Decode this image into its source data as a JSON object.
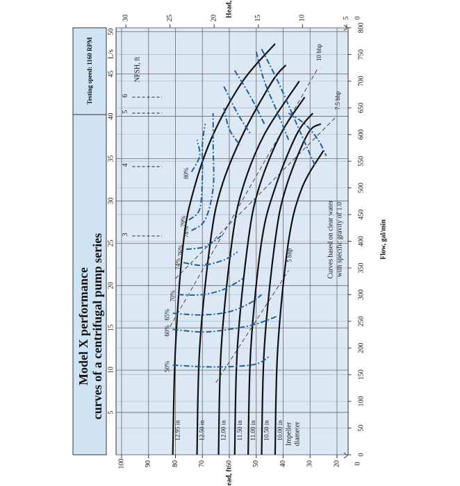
{
  "chart_data": {
    "type": "line",
    "title": "Model X performance",
    "subtitle": "curves of a centrifugal pump series",
    "speed_note": "Testing speed: 1160 RPM",
    "xlabel": "Flow, gal/min",
    "x2label": "L/s",
    "ylabel": "Head, ft",
    "y2label": "Head, m",
    "xlim": [
      0,
      800
    ],
    "xticks": [
      0,
      50,
      100,
      150,
      200,
      250,
      300,
      350,
      400,
      450,
      500,
      550,
      600,
      650,
      700,
      750,
      800
    ],
    "x2lim": [
      0,
      50.47
    ],
    "x2ticks": [
      5,
      10,
      15,
      20,
      25,
      30,
      35,
      40,
      45,
      50
    ],
    "ylim": [
      16,
      102
    ],
    "yticks": [
      20,
      30,
      40,
      50,
      60,
      70,
      80,
      90,
      100
    ],
    "y2lim": [
      4.877,
      31.09
    ],
    "y2ticks": [
      5,
      10,
      15,
      20,
      25,
      30
    ],
    "ybreak_tick": 0,
    "y2break_tick": 0,
    "grid": true,
    "impeller_label": [
      "Impeller",
      "diameter"
    ],
    "annotation": [
      "Curves based on clear water",
      "with specific gravity of 1.0"
    ],
    "npsh": {
      "label": "NPSH, ft",
      "marks": [
        {
          "npsh": 3,
          "x": 410
        },
        {
          "npsh": 4,
          "x": 540
        },
        {
          "npsh": 5,
          "x": 640
        },
        {
          "npsh": 6,
          "x": 670
        }
      ]
    },
    "series": [
      {
        "name": "12.95 in",
        "kind": "impeller",
        "color": "#111111",
        "x": [
          0,
          200,
          400,
          500,
          600,
          700,
          770
        ],
        "values": [
          81,
          80,
          77,
          73,
          66,
          55,
          43
        ]
      },
      {
        "name": "12.50 in",
        "kind": "impeller",
        "color": "#111111",
        "x": [
          0,
          200,
          400,
          500,
          600,
          700,
          730
        ],
        "values": [
          72,
          71,
          67,
          63,
          55,
          44,
          39
        ]
      },
      {
        "name": "12.00 in",
        "kind": "impeller",
        "color": "#111111",
        "x": [
          0,
          200,
          400,
          500,
          600,
          700
        ],
        "values": [
          64,
          63,
          59,
          55,
          47,
          34
        ]
      },
      {
        "name": "11.50 in",
        "kind": "impeller",
        "color": "#111111",
        "x": [
          0,
          200,
          400,
          500,
          600,
          670
        ],
        "values": [
          58,
          57,
          53,
          49,
          41,
          32
        ]
      },
      {
        "name": "11.00 in",
        "kind": "impeller",
        "color": "#111111",
        "x": [
          0,
          200,
          400,
          500,
          600,
          640
        ],
        "values": [
          53,
          52,
          48,
          43,
          35,
          29
        ]
      },
      {
        "name": "10.50 in",
        "kind": "impeller",
        "color": "#111111",
        "x": [
          0,
          200,
          400,
          500,
          600,
          620
        ],
        "values": [
          48,
          47,
          43,
          39,
          31,
          26
        ]
      },
      {
        "name": "10.00 in",
        "kind": "impeller",
        "color": "#111111",
        "x": [
          0,
          200,
          400,
          500,
          570
        ],
        "values": [
          43,
          42,
          38,
          33,
          25
        ]
      },
      {
        "name": "50%",
        "kind": "efficiency",
        "color": "#1f5f9f",
        "x": [
          168,
          165,
          165,
          170,
          185,
          null,
          640,
          620,
          590,
          560
        ],
        "values": [
          81,
          70,
          60,
          50,
          45,
          null,
          38,
          32,
          27,
          24
        ]
      },
      {
        "name": "60%",
        "kind": "efficiency",
        "color": "#1f5f9f",
        "x": [
          235,
          230,
          235,
          245,
          260,
          null,
          760,
          700,
          620,
          540
        ],
        "values": [
          81,
          70,
          60,
          50,
          42,
          null,
          48,
          42,
          35,
          28
        ]
      },
      {
        "name": "65%",
        "kind": "efficiency",
        "color": "#1f5f9f",
        "x": [
          265,
          262,
          268,
          285,
          300,
          null,
          755,
          700,
          640,
          590
        ],
        "values": [
          81,
          70,
          60,
          52,
          48,
          null,
          50,
          47,
          42,
          38
        ]
      },
      {
        "name": "70%",
        "kind": "efficiency",
        "color": "#1f5f9f",
        "x": [
          300,
          300,
          310,
          330,
          null,
          720,
          670,
          620
        ],
        "values": [
          79,
          70,
          62,
          55,
          null,
          58,
          52,
          47
        ]
      },
      {
        "name": "74%",
        "kind": "efficiency",
        "color": "#1f5f9f",
        "x": [
          360,
          355,
          365,
          380,
          null,
          690,
          640,
          600
        ],
        "values": [
          77,
          70,
          62,
          57,
          null,
          62,
          57,
          52
        ]
      },
      {
        "name": "76%",
        "kind": "efficiency",
        "color": "#1f5f9f",
        "x": [
          385,
          390,
          410,
          null,
          650,
          610,
          580
        ],
        "values": [
          76,
          69,
          63,
          null,
          62,
          60,
          56
        ]
      },
      {
        "name": "78%",
        "kind": "efficiency",
        "color": "#1f5f9f",
        "x": [
          420,
          440,
          500,
          580,
          640
        ],
        "values": [
          74,
          69,
          66,
          66,
          66
        ]
      },
      {
        "name": "79%",
        "kind": "efficiency",
        "color": "#1f5f9f",
        "x": [
          440,
          460,
          520,
          580,
          620
        ],
        "values": [
          75,
          71,
          70,
          70,
          69
        ]
      },
      {
        "name": "80%",
        "kind": "efficiency",
        "color": "#1f5f9f",
        "x": [
          530,
          560,
          590
        ],
        "values": [
          74,
          71,
          72
        ]
      },
      {
        "name": "5 bhp",
        "kind": "power",
        "color": "#333333",
        "x": [
          135,
          345
        ],
        "values": [
          65,
          38
        ]
      },
      {
        "name": "7.5 bhp",
        "kind": "power",
        "color": "#333333",
        "x": [
          330,
          635
        ],
        "values": [
          80,
          20
        ]
      },
      {
        "name": "10 bhp",
        "kind": "power",
        "color": "#333333",
        "x": [
          240,
          725
        ],
        "values": [
          82,
          27
        ]
      }
    ]
  }
}
